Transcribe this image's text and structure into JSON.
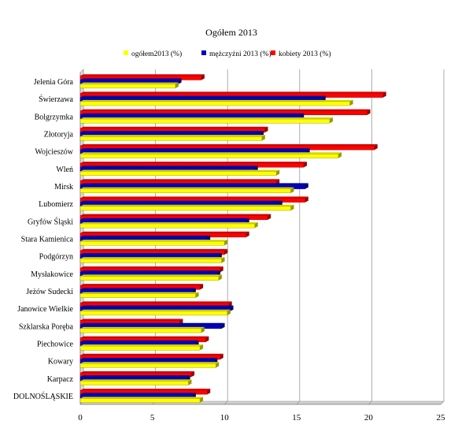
{
  "chart_data": {
    "type": "bar",
    "orientation": "horizontal",
    "title": "Ogółem 2013",
    "categories": [
      "Jelenia Góra",
      "Świerzawa",
      "Bolgrzymka",
      "Złotoryja",
      "Wojcieszów",
      "Wleń",
      "Mirsk",
      "Lubomierz",
      "Gryfów Śląski",
      "Stara Kamienica",
      "Podgórzyn",
      "Mysłakowice",
      "Jeżów Sudecki",
      "Janowice Wielkie",
      "Szklarska Poręba",
      "Piechowice",
      "Kowary",
      "Karpacz",
      "DOLNOŚLĄSKIE"
    ],
    "series": [
      {
        "name": "ogółem2013 (%)",
        "color": "#ffff00",
        "values": [
          6.6,
          18.7,
          17.3,
          12.6,
          17.9,
          13.6,
          14.6,
          14.6,
          12.1,
          10.0,
          9.8,
          9.6,
          8.0,
          10.2,
          8.4,
          8.3,
          9.4,
          7.5,
          8.3
        ]
      },
      {
        "name": "mężczyźni 2013 (%)",
        "color": "#0000c0",
        "values": [
          6.8,
          16.8,
          15.3,
          12.5,
          15.7,
          12.1,
          15.6,
          13.8,
          11.5,
          8.8,
          9.6,
          9.5,
          7.8,
          10.4,
          9.8,
          8.0,
          9.3,
          7.4,
          7.8
        ]
      },
      {
        "name": "kobiety 2013 (%)",
        "color": "#ff0000",
        "values": [
          8.4,
          21.0,
          19.9,
          12.8,
          20.4,
          15.5,
          13.6,
          15.6,
          13.0,
          11.5,
          10.0,
          9.7,
          8.3,
          10.3,
          6.9,
          8.7,
          9.7,
          7.7,
          8.8
        ]
      }
    ],
    "xaxis": {
      "min": 0,
      "max": 25,
      "step": 5,
      "ticks": [
        "0",
        "5",
        "10",
        "15",
        "20",
        "25"
      ]
    },
    "grid": true,
    "legend_position": "top"
  }
}
